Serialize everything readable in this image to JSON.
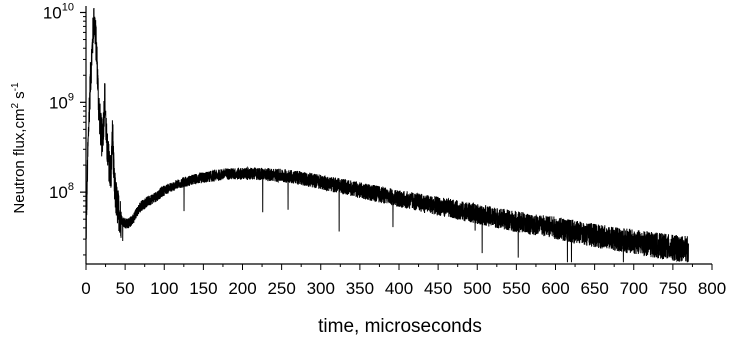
{
  "chart_data": {
    "type": "line",
    "title": "",
    "xlabel": "time, microseconds",
    "ylabel": {
      "text": "Neutron flux,cm",
      "exp1": "2",
      "mid": " s",
      "exp2": "-1"
    },
    "xlim": [
      0,
      800
    ],
    "ylim_log10": [
      7.2,
      10.05
    ],
    "y_scale": "log",
    "grid": false,
    "x_ticks": [
      "0",
      "50",
      "100",
      "150",
      "200",
      "250",
      "300",
      "350",
      "400",
      "450",
      "500",
      "550",
      "600",
      "650",
      "700",
      "750",
      "800"
    ],
    "y_ticks": [
      {
        "base": "10",
        "exp": "10",
        "value": 10000000000
      },
      {
        "base": "10",
        "exp": "9",
        "value": 1000000000
      },
      {
        "base": "10",
        "exp": "8",
        "value": 100000000
      }
    ],
    "series": [
      {
        "color": "#000000",
        "noise": "high",
        "x": [
          0,
          2,
          4,
          6,
          8,
          10,
          12,
          14,
          16,
          18,
          20,
          22,
          24,
          26,
          28,
          30,
          32,
          34,
          36,
          38,
          40,
          45,
          50,
          55,
          60,
          65,
          70,
          80,
          90,
          100,
          120,
          140,
          160,
          180,
          200,
          220,
          240,
          260,
          280,
          300,
          350,
          400,
          450,
          500,
          550,
          600,
          650,
          700,
          750,
          770
        ],
        "y": [
          30000000.0,
          200000000.0,
          800000000.0,
          2000000000.0,
          4000000000.0,
          9000000000.0,
          6000000000.0,
          3000000000.0,
          1000000000.0,
          600000000.0,
          400000000.0,
          500000000.0,
          1200000000.0,
          400000000.0,
          250000000.0,
          200000000.0,
          150000000.0,
          500000000.0,
          120000000.0,
          90000000.0,
          70000000.0,
          50000000.0,
          45000000.0,
          45000000.0,
          50000000.0,
          60000000.0,
          70000000.0,
          80000000.0,
          90000000.0,
          105000000.0,
          125000000.0,
          140000000.0,
          150000000.0,
          160000000.0,
          160000000.0,
          160000000.0,
          155000000.0,
          150000000.0,
          140000000.0,
          130000000.0,
          105000000.0,
          85000000.0,
          70000000.0,
          57000000.0,
          47000000.0,
          40000000.0,
          33000000.0,
          28000000.0,
          24000000.0,
          23000000.0
        ]
      }
    ]
  }
}
